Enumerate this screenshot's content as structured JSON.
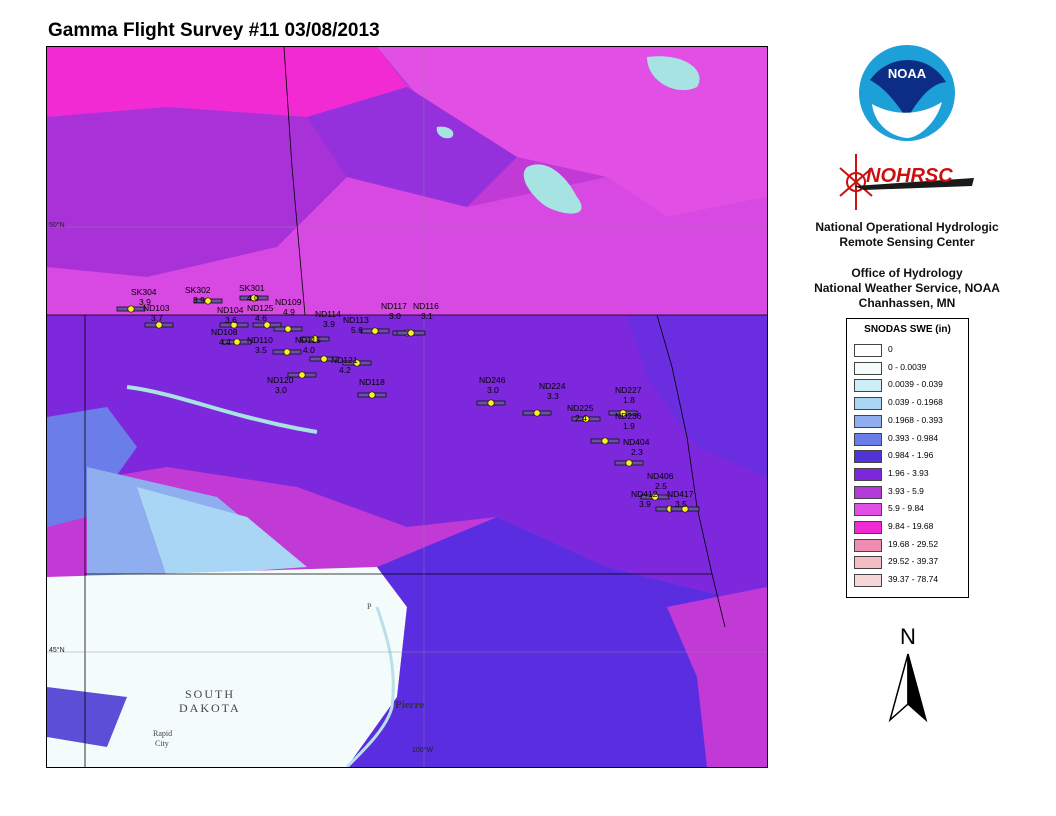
{
  "title": "Gamma Flight Survey #11 03/08/2013",
  "map": {
    "lat_labels": [
      "50°N",
      "45°N"
    ],
    "lon_label": "100°W",
    "cities": [
      "SOUTH",
      "DAKOTA",
      "Pierre",
      "Rapid",
      "City"
    ],
    "river_marker": "P"
  },
  "logos": {
    "noaa": "NOAA",
    "nohrsc": "NOHRSC"
  },
  "org": {
    "line1": "National Operational Hydrologic",
    "line2": "Remote Sensing Center",
    "line3": "Office of Hydrology",
    "line4": "National Weather Service, NOAA",
    "line5": "Chanhassen, MN"
  },
  "legend": {
    "title": "SNODAS SWE (in)",
    "items": [
      {
        "label": "0",
        "color": "#ffffff"
      },
      {
        "label": "0 - 0.0039",
        "color": "#f4fbfb"
      },
      {
        "label": "0.0039 - 0.039",
        "color": "#cdeef7"
      },
      {
        "label": "0.039 - 0.1968",
        "color": "#a9d6f5"
      },
      {
        "label": "0.1968 - 0.393",
        "color": "#8eaef0"
      },
      {
        "label": "0.393 - 0.984",
        "color": "#6a7de8"
      },
      {
        "label": "0.984 - 1.96",
        "color": "#5233d8"
      },
      {
        "label": "1.96 - 3.93",
        "color": "#7d28dc"
      },
      {
        "label": "3.93 - 5.9",
        "color": "#b43ad9"
      },
      {
        "label": "5.9 - 9.84",
        "color": "#e14fe4"
      },
      {
        "label": "9.84 - 19.68",
        "color": "#f22ad3"
      },
      {
        "label": "19.68 - 29.52",
        "color": "#f08cb2"
      },
      {
        "label": "29.52 - 39.37",
        "color": "#f6bec4"
      },
      {
        "label": "39.37 - 78.74",
        "color": "#f7d6d8"
      }
    ]
  },
  "north_label": "N",
  "flight_lines": [
    {
      "name": "SK304",
      "value": "3.9"
    },
    {
      "name": "SK302",
      "value": "3.9"
    },
    {
      "name": "SK301",
      "value": "4.0"
    },
    {
      "name": "ND103",
      "value": "3.7"
    },
    {
      "name": "ND104",
      "value": "3.6"
    },
    {
      "name": "ND125",
      "value": "4.6"
    },
    {
      "name": "ND109",
      "value": "4.9"
    },
    {
      "name": "ND108",
      "value": "4.4"
    },
    {
      "name": "ND114",
      "value": "3.9"
    },
    {
      "name": "ND115",
      "value": "4.0"
    },
    {
      "name": "ND110",
      "value": "3.5"
    },
    {
      "name": "ND120",
      "value": "3.0"
    },
    {
      "name": "ND113",
      "value": "5.6"
    },
    {
      "name": "ND117",
      "value": "3.0"
    },
    {
      "name": "ND116",
      "value": "3.1"
    },
    {
      "name": "ND121",
      "value": "4.2"
    },
    {
      "name": "ND118",
      "value": ""
    },
    {
      "name": "ND246",
      "value": "3.0"
    },
    {
      "name": "ND224",
      "value": "3.3"
    },
    {
      "name": "ND227",
      "value": "1.8"
    },
    {
      "name": "ND225",
      "value": "2.4"
    },
    {
      "name": "ND236",
      "value": "1.9"
    },
    {
      "name": "ND404",
      "value": "2.3"
    },
    {
      "name": "ND406",
      "value": "2.5"
    },
    {
      "name": "ND412",
      "value": "3.9"
    },
    {
      "name": "ND417",
      "value": "3.5"
    }
  ]
}
